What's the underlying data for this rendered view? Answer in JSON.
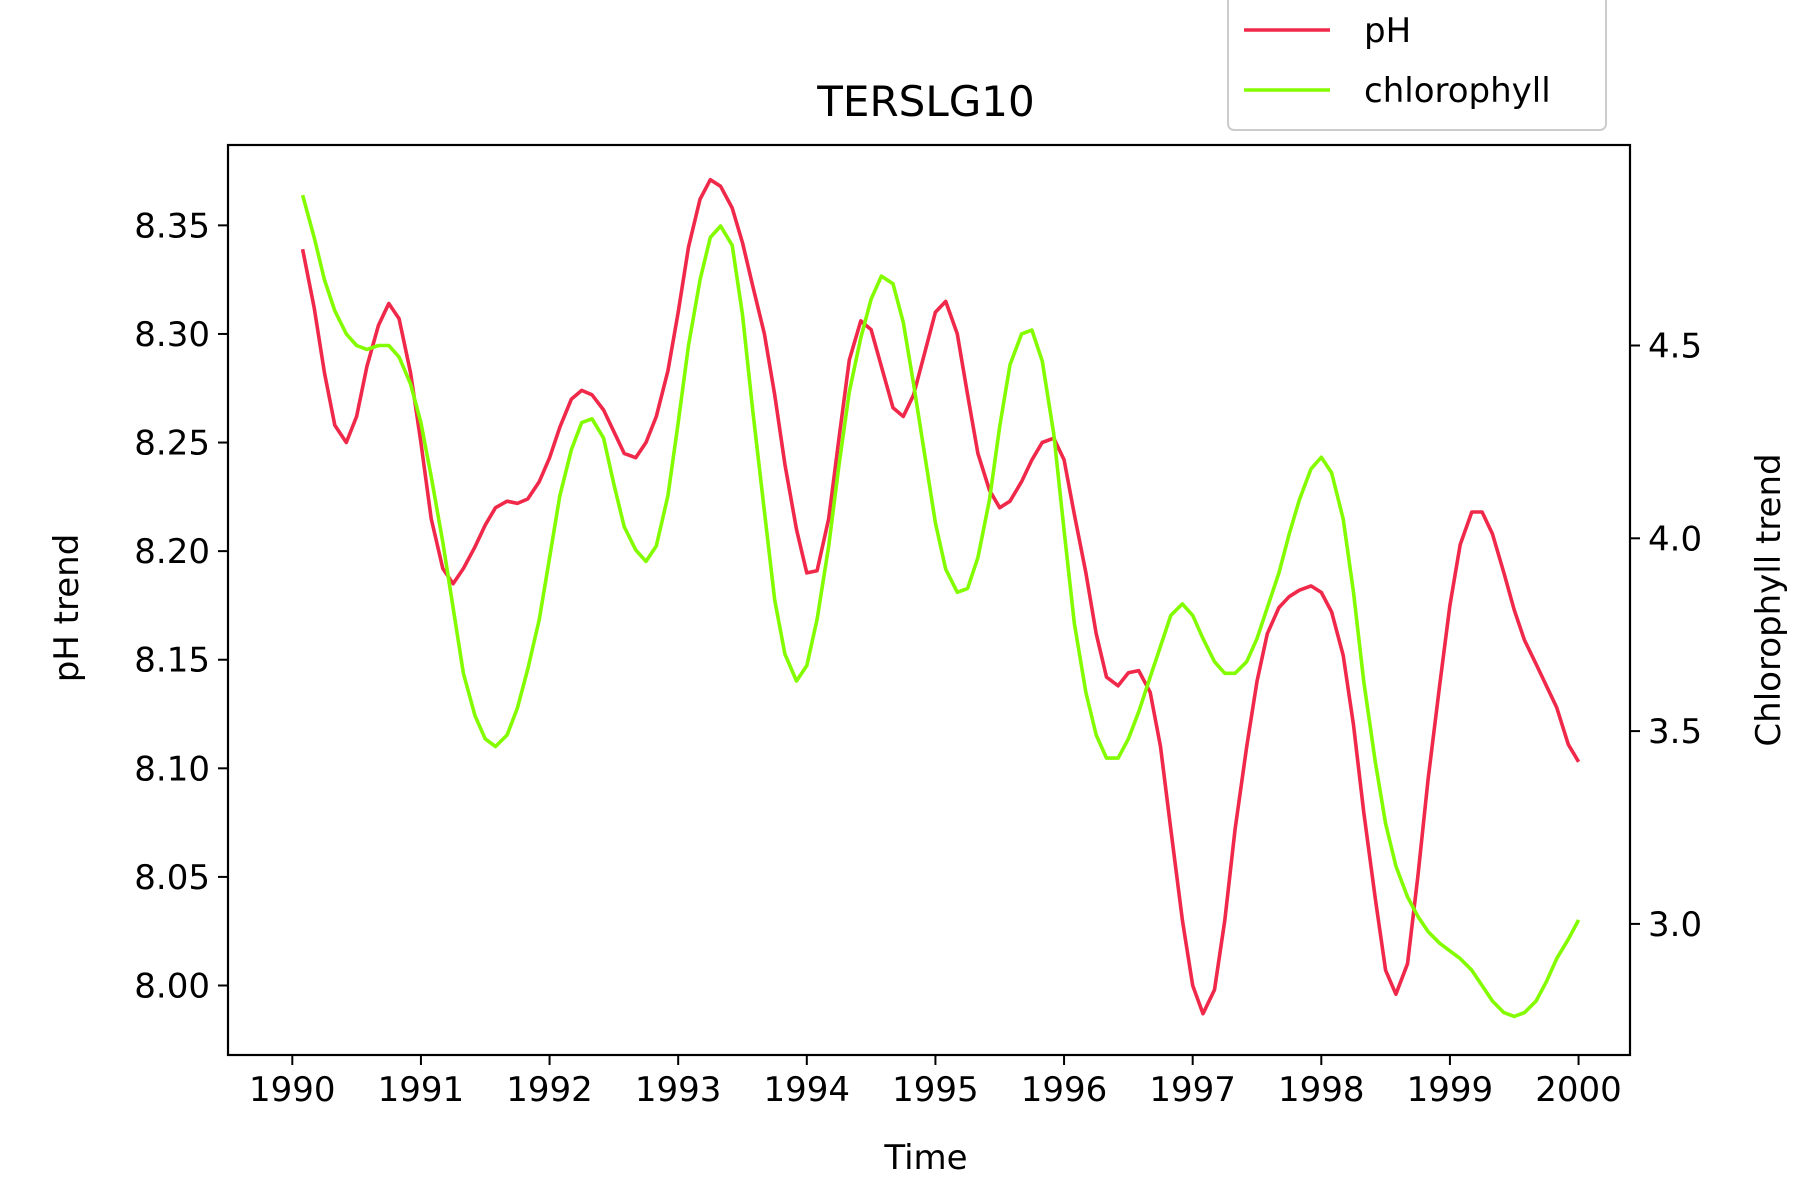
{
  "chart_data": {
    "type": "line",
    "title": "TERSLG10",
    "xlabel": "Time",
    "ylabel_left": "pH trend",
    "ylabel_right": "Chlorophyll trend",
    "xlim": [
      1989.5,
      2000.4
    ],
    "ylim_left": [
      7.968,
      8.387
    ],
    "ylim_right": [
      2.66,
      5.02
    ],
    "x_ticks": [
      1990,
      1991,
      1992,
      1993,
      1994,
      1995,
      1996,
      1997,
      1998,
      1999,
      2000
    ],
    "y_ticks_left": [
      "8.00",
      "8.05",
      "8.10",
      "8.15",
      "8.20",
      "8.25",
      "8.30",
      "8.35"
    ],
    "y_ticks_right": [
      "3.0",
      "3.5",
      "4.0",
      "4.5"
    ],
    "grid": false,
    "legend_position": "top-right",
    "series": [
      {
        "name": "pH",
        "axis": "left",
        "color": "#f0284a",
        "points": [
          [
            1990.08,
            8.339
          ],
          [
            1990.17,
            8.312
          ],
          [
            1990.25,
            8.282
          ],
          [
            1990.33,
            8.258
          ],
          [
            1990.42,
            8.25
          ],
          [
            1990.5,
            8.262
          ],
          [
            1990.58,
            8.285
          ],
          [
            1990.67,
            8.304
          ],
          [
            1990.75,
            8.314
          ],
          [
            1990.83,
            8.307
          ],
          [
            1990.92,
            8.282
          ],
          [
            1991.0,
            8.25
          ],
          [
            1991.08,
            8.215
          ],
          [
            1991.17,
            8.192
          ],
          [
            1991.25,
            8.185
          ],
          [
            1991.33,
            8.192
          ],
          [
            1991.42,
            8.202
          ],
          [
            1991.5,
            8.212
          ],
          [
            1991.58,
            8.22
          ],
          [
            1991.67,
            8.223
          ],
          [
            1991.75,
            8.222
          ],
          [
            1991.83,
            8.224
          ],
          [
            1991.92,
            8.232
          ],
          [
            1992.0,
            8.243
          ],
          [
            1992.08,
            8.257
          ],
          [
            1992.17,
            8.27
          ],
          [
            1992.25,
            8.274
          ],
          [
            1992.33,
            8.272
          ],
          [
            1992.42,
            8.265
          ],
          [
            1992.5,
            8.255
          ],
          [
            1992.58,
            8.245
          ],
          [
            1992.67,
            8.243
          ],
          [
            1992.75,
            8.25
          ],
          [
            1992.83,
            8.262
          ],
          [
            1992.92,
            8.283
          ],
          [
            1993.0,
            8.31
          ],
          [
            1993.08,
            8.34
          ],
          [
            1993.17,
            8.362
          ],
          [
            1993.25,
            8.371
          ],
          [
            1993.33,
            8.368
          ],
          [
            1993.42,
            8.358
          ],
          [
            1993.5,
            8.342
          ],
          [
            1993.58,
            8.322
          ],
          [
            1993.67,
            8.3
          ],
          [
            1993.75,
            8.272
          ],
          [
            1993.83,
            8.24
          ],
          [
            1993.92,
            8.21
          ],
          [
            1994.0,
            8.19
          ],
          [
            1994.08,
            8.191
          ],
          [
            1994.17,
            8.215
          ],
          [
            1994.25,
            8.252
          ],
          [
            1994.33,
            8.288
          ],
          [
            1994.42,
            8.306
          ],
          [
            1994.5,
            8.302
          ],
          [
            1994.58,
            8.285
          ],
          [
            1994.67,
            8.266
          ],
          [
            1994.75,
            8.262
          ],
          [
            1994.83,
            8.272
          ],
          [
            1994.92,
            8.292
          ],
          [
            1995.0,
            8.31
          ],
          [
            1995.08,
            8.315
          ],
          [
            1995.17,
            8.3
          ],
          [
            1995.25,
            8.272
          ],
          [
            1995.33,
            8.245
          ],
          [
            1995.42,
            8.228
          ],
          [
            1995.5,
            8.22
          ],
          [
            1995.58,
            8.223
          ],
          [
            1995.67,
            8.232
          ],
          [
            1995.75,
            8.242
          ],
          [
            1995.83,
            8.25
          ],
          [
            1995.92,
            8.252
          ],
          [
            1996.0,
            8.242
          ],
          [
            1996.08,
            8.217
          ],
          [
            1996.17,
            8.19
          ],
          [
            1996.25,
            8.162
          ],
          [
            1996.33,
            8.142
          ],
          [
            1996.42,
            8.138
          ],
          [
            1996.5,
            8.144
          ],
          [
            1996.58,
            8.145
          ],
          [
            1996.67,
            8.135
          ],
          [
            1996.75,
            8.11
          ],
          [
            1996.83,
            8.072
          ],
          [
            1996.92,
            8.03
          ],
          [
            1997.0,
            8.0
          ],
          [
            1997.08,
            7.987
          ],
          [
            1997.17,
            7.998
          ],
          [
            1997.25,
            8.03
          ],
          [
            1997.33,
            8.072
          ],
          [
            1997.42,
            8.11
          ],
          [
            1997.5,
            8.14
          ],
          [
            1997.58,
            8.162
          ],
          [
            1997.67,
            8.174
          ],
          [
            1997.75,
            8.179
          ],
          [
            1997.83,
            8.182
          ],
          [
            1997.92,
            8.184
          ],
          [
            1998.0,
            8.181
          ],
          [
            1998.08,
            8.172
          ],
          [
            1998.17,
            8.152
          ],
          [
            1998.25,
            8.12
          ],
          [
            1998.33,
            8.08
          ],
          [
            1998.42,
            8.04
          ],
          [
            1998.5,
            8.007
          ],
          [
            1998.58,
            7.996
          ],
          [
            1998.67,
            8.01
          ],
          [
            1998.75,
            8.05
          ],
          [
            1998.83,
            8.095
          ],
          [
            1998.92,
            8.138
          ],
          [
            1999.0,
            8.175
          ],
          [
            1999.08,
            8.203
          ],
          [
            1999.17,
            8.218
          ],
          [
            1999.25,
            8.218
          ],
          [
            1999.33,
            8.208
          ],
          [
            1999.42,
            8.19
          ],
          [
            1999.5,
            8.173
          ],
          [
            1999.58,
            8.159
          ],
          [
            1999.67,
            8.148
          ],
          [
            1999.75,
            8.138
          ],
          [
            1999.83,
            8.128
          ],
          [
            1999.92,
            8.111
          ],
          [
            2000.0,
            8.103
          ]
        ]
      },
      {
        "name": "chlorophyll",
        "axis": "right",
        "color": "#84fc00",
        "points": [
          [
            1990.08,
            4.89
          ],
          [
            1990.17,
            4.78
          ],
          [
            1990.25,
            4.67
          ],
          [
            1990.33,
            4.59
          ],
          [
            1990.42,
            4.53
          ],
          [
            1990.5,
            4.5
          ],
          [
            1990.58,
            4.49
          ],
          [
            1990.67,
            4.5
          ],
          [
            1990.75,
            4.5
          ],
          [
            1990.83,
            4.47
          ],
          [
            1990.92,
            4.4
          ],
          [
            1991.0,
            4.3
          ],
          [
            1991.08,
            4.16
          ],
          [
            1991.17,
            3.99
          ],
          [
            1991.25,
            3.82
          ],
          [
            1991.33,
            3.65
          ],
          [
            1991.42,
            3.54
          ],
          [
            1991.5,
            3.48
          ],
          [
            1991.58,
            3.46
          ],
          [
            1991.67,
            3.49
          ],
          [
            1991.75,
            3.56
          ],
          [
            1991.83,
            3.66
          ],
          [
            1991.92,
            3.79
          ],
          [
            1992.0,
            3.95
          ],
          [
            1992.08,
            4.11
          ],
          [
            1992.17,
            4.23
          ],
          [
            1992.25,
            4.3
          ],
          [
            1992.33,
            4.31
          ],
          [
            1992.42,
            4.26
          ],
          [
            1992.5,
            4.14
          ],
          [
            1992.58,
            4.03
          ],
          [
            1992.67,
            3.97
          ],
          [
            1992.75,
            3.94
          ],
          [
            1992.83,
            3.98
          ],
          [
            1992.92,
            4.11
          ],
          [
            1993.0,
            4.3
          ],
          [
            1993.08,
            4.5
          ],
          [
            1993.17,
            4.67
          ],
          [
            1993.25,
            4.78
          ],
          [
            1993.33,
            4.81
          ],
          [
            1993.42,
            4.76
          ],
          [
            1993.5,
            4.58
          ],
          [
            1993.58,
            4.33
          ],
          [
            1993.67,
            4.07
          ],
          [
            1993.75,
            3.84
          ],
          [
            1993.83,
            3.7
          ],
          [
            1993.92,
            3.63
          ],
          [
            1994.0,
            3.67
          ],
          [
            1994.08,
            3.79
          ],
          [
            1994.17,
            3.98
          ],
          [
            1994.25,
            4.19
          ],
          [
            1994.33,
            4.38
          ],
          [
            1994.42,
            4.52
          ],
          [
            1994.5,
            4.62
          ],
          [
            1994.58,
            4.68
          ],
          [
            1994.67,
            4.66
          ],
          [
            1994.75,
            4.56
          ],
          [
            1994.83,
            4.4
          ],
          [
            1994.92,
            4.21
          ],
          [
            1995.0,
            4.04
          ],
          [
            1995.08,
            3.92
          ],
          [
            1995.17,
            3.86
          ],
          [
            1995.25,
            3.87
          ],
          [
            1995.33,
            3.95
          ],
          [
            1995.42,
            4.1
          ],
          [
            1995.5,
            4.29
          ],
          [
            1995.58,
            4.45
          ],
          [
            1995.67,
            4.53
          ],
          [
            1995.75,
            4.54
          ],
          [
            1995.83,
            4.46
          ],
          [
            1995.92,
            4.27
          ],
          [
            1996.0,
            4.02
          ],
          [
            1996.08,
            3.78
          ],
          [
            1996.17,
            3.6
          ],
          [
            1996.25,
            3.49
          ],
          [
            1996.33,
            3.43
          ],
          [
            1996.42,
            3.43
          ],
          [
            1996.5,
            3.48
          ],
          [
            1996.58,
            3.55
          ],
          [
            1996.67,
            3.64
          ],
          [
            1996.75,
            3.72
          ],
          [
            1996.83,
            3.8
          ],
          [
            1996.92,
            3.83
          ],
          [
            1997.0,
            3.8
          ],
          [
            1997.08,
            3.74
          ],
          [
            1997.17,
            3.68
          ],
          [
            1997.25,
            3.65
          ],
          [
            1997.33,
            3.65
          ],
          [
            1997.42,
            3.68
          ],
          [
            1997.5,
            3.74
          ],
          [
            1997.58,
            3.82
          ],
          [
            1997.67,
            3.91
          ],
          [
            1997.75,
            4.01
          ],
          [
            1997.83,
            4.1
          ],
          [
            1997.92,
            4.18
          ],
          [
            1998.0,
            4.21
          ],
          [
            1998.08,
            4.17
          ],
          [
            1998.17,
            4.05
          ],
          [
            1998.25,
            3.86
          ],
          [
            1998.33,
            3.63
          ],
          [
            1998.42,
            3.42
          ],
          [
            1998.5,
            3.26
          ],
          [
            1998.58,
            3.15
          ],
          [
            1998.67,
            3.07
          ],
          [
            1998.75,
            3.02
          ],
          [
            1998.83,
            2.98
          ],
          [
            1998.92,
            2.95
          ],
          [
            1999.0,
            2.93
          ],
          [
            1999.08,
            2.91
          ],
          [
            1999.17,
            2.88
          ],
          [
            1999.25,
            2.84
          ],
          [
            1999.33,
            2.8
          ],
          [
            1999.42,
            2.77
          ],
          [
            1999.5,
            2.76
          ],
          [
            1999.58,
            2.77
          ],
          [
            1999.67,
            2.8
          ],
          [
            1999.75,
            2.85
          ],
          [
            1999.83,
            2.91
          ],
          [
            1999.92,
            2.96
          ],
          [
            2000.0,
            3.01
          ]
        ]
      }
    ]
  }
}
